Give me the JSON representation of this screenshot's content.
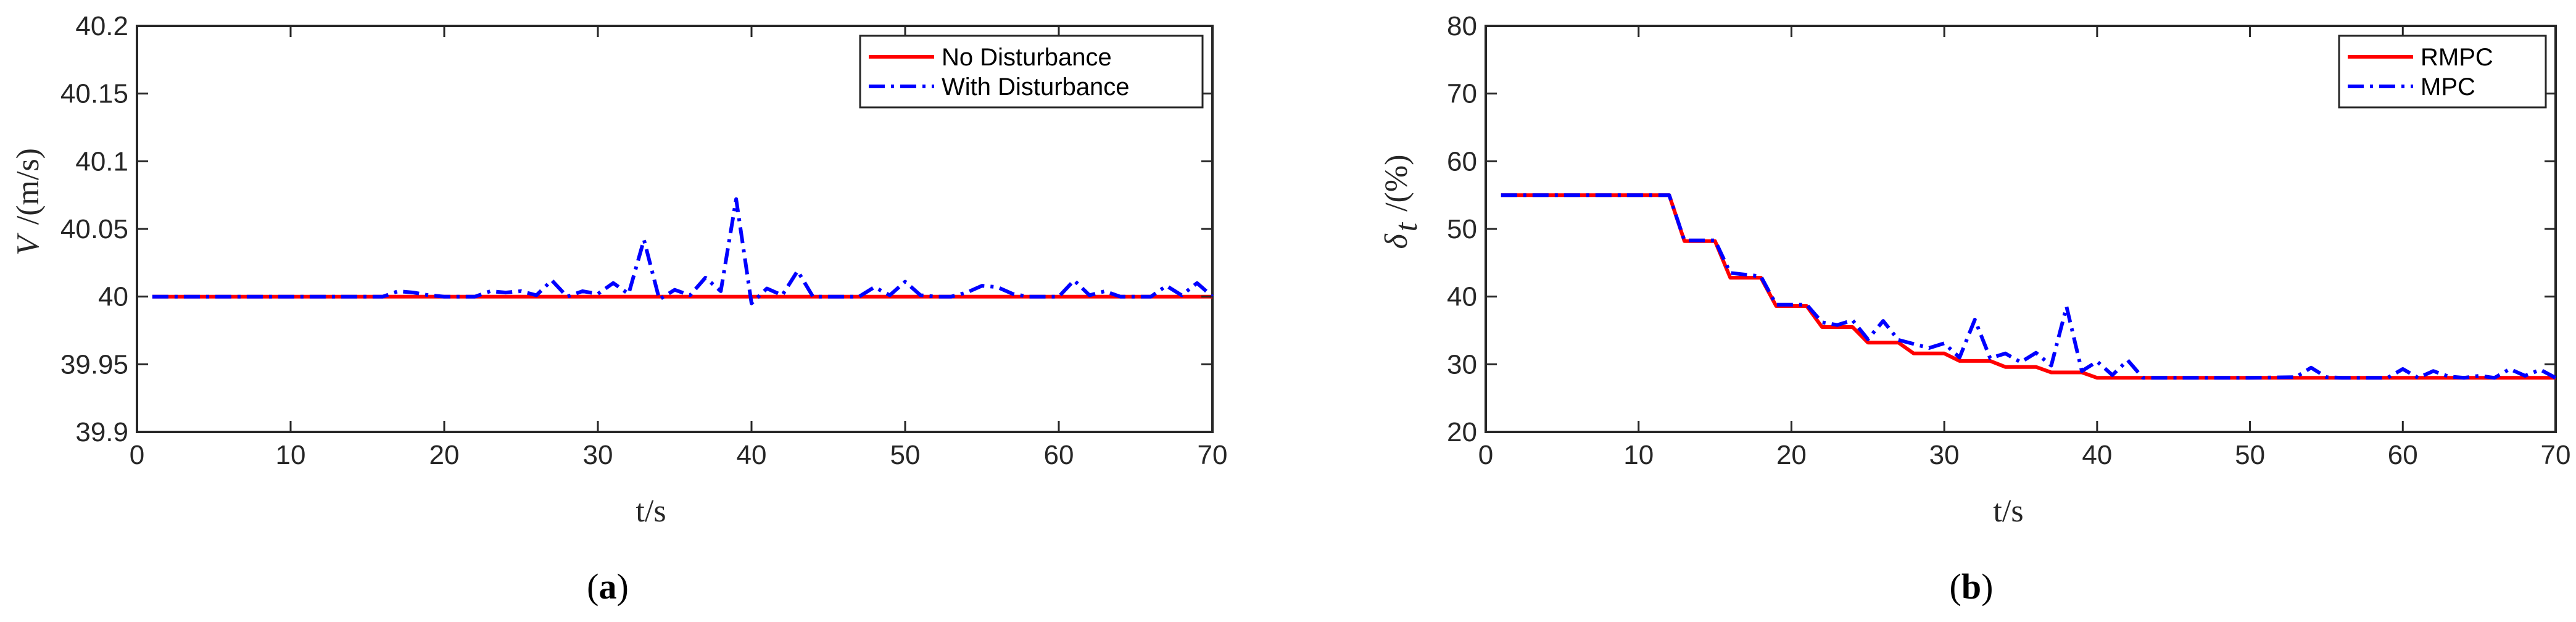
{
  "chart_data": [
    {
      "type": "line",
      "caption": {
        "open": "(",
        "letter": "a",
        "close": ")"
      },
      "xlabel": "t/s",
      "ylabel": {
        "symbol": "V",
        "unit": "/(m/s)"
      },
      "xlim": [
        0,
        70
      ],
      "ylim": [
        39.9,
        40.2
      ],
      "xticks": [
        0,
        10,
        20,
        30,
        40,
        50,
        60,
        70
      ],
      "yticks": [
        39.9,
        39.95,
        40,
        40.05,
        40.1,
        40.15,
        40.2
      ],
      "ytick_labels": [
        "39.9",
        "39.95",
        "40",
        "40.05",
        "40.1",
        "40.15",
        "40.2"
      ],
      "grid": false,
      "legend_position": "top-right",
      "series": [
        {
          "name": "No Disturbance",
          "color": "#ff0000",
          "style": "solid",
          "x": [
            1,
            70
          ],
          "y": [
            40.0,
            40.0
          ]
        },
        {
          "name": "With Disturbance",
          "color": "#0000ff",
          "style": "dashdot",
          "x": [
            1,
            2,
            3,
            4,
            5,
            6,
            7,
            8,
            9,
            10,
            11,
            12,
            13,
            14,
            15,
            16,
            17,
            18,
            19,
            20,
            21,
            22,
            23,
            24,
            25,
            26,
            27,
            28,
            29,
            30,
            31,
            32,
            33,
            34,
            35,
            36,
            37,
            38,
            39,
            40,
            41,
            42,
            43,
            44,
            45,
            46,
            47,
            48,
            49,
            50,
            51,
            52,
            53,
            54,
            55,
            56,
            57,
            58,
            59,
            60,
            61,
            62,
            63,
            64,
            65,
            66,
            67,
            68,
            69,
            70
          ],
          "y": [
            40,
            40,
            40,
            40,
            40,
            40,
            40,
            40,
            40,
            40,
            40,
            40,
            40,
            40,
            40,
            40,
            40.004,
            40.003,
            40.001,
            40,
            40,
            40,
            40.004,
            40.003,
            40.004,
            40.001,
            40.012,
            40,
            40.004,
            40.002,
            40.01,
            40.002,
            40.042,
            39.998,
            40.005,
            40.001,
            40.014,
            40.004,
            40.072,
            39.995,
            40.006,
            40.001,
            40.019,
            40,
            40,
            40,
            40,
            40.007,
            40.001,
            40.011,
            40.001,
            40,
            40,
            40.003,
            40.008,
            40.007,
            40.002,
            40,
            40,
            40,
            40.012,
            40.001,
            40.004,
            40,
            40,
            40,
            40.008,
            40.001,
            40.01,
            40
          ]
        }
      ]
    },
    {
      "type": "line",
      "caption": {
        "open": "(",
        "letter": "b",
        "close": ")"
      },
      "xlabel": "t/s",
      "ylabel": {
        "symbol": "δ",
        "subscript": "t",
        "unit": "/(%)"
      },
      "xlim": [
        0,
        70
      ],
      "ylim": [
        20,
        80
      ],
      "xticks": [
        0,
        10,
        20,
        30,
        40,
        50,
        60,
        70
      ],
      "yticks": [
        20,
        30,
        40,
        50,
        60,
        70,
        80
      ],
      "ytick_labels": [
        "20",
        "30",
        "40",
        "50",
        "60",
        "70",
        "80"
      ],
      "grid": false,
      "legend_position": "top-right",
      "series": [
        {
          "name": "RMPC",
          "color": "#ff0000",
          "style": "solid",
          "x": [
            1,
            12,
            13,
            15,
            16,
            18,
            19,
            21,
            22,
            24,
            25,
            27,
            28,
            30,
            31,
            33,
            34,
            36,
            37,
            39,
            40,
            70
          ],
          "y": [
            55,
            55,
            48.2,
            48.2,
            42.8,
            42.8,
            38.6,
            38.6,
            35.5,
            35.5,
            33.2,
            33.2,
            31.6,
            31.6,
            30.5,
            30.5,
            29.6,
            29.6,
            28.8,
            28.8,
            28,
            28
          ]
        },
        {
          "name": "MPC",
          "color": "#0000ff",
          "style": "dashdot",
          "x": [
            1,
            12,
            13,
            15,
            16,
            18,
            19,
            21,
            22,
            23,
            24,
            25,
            26,
            27,
            28,
            29,
            30,
            31,
            32,
            33,
            34,
            35,
            36,
            37,
            38,
            39,
            40,
            41,
            42,
            43,
            44,
            45,
            50,
            53,
            54,
            55,
            56,
            59,
            60,
            61,
            62,
            63,
            64,
            65,
            66,
            67,
            68,
            69,
            70
          ],
          "y": [
            55,
            55,
            48.3,
            48.3,
            43.5,
            43,
            38.8,
            38.8,
            36.2,
            35.8,
            36.5,
            33.7,
            36.4,
            33.6,
            33,
            32.4,
            33.1,
            31,
            36.6,
            30.9,
            31.6,
            30.3,
            31.7,
            29.8,
            38.5,
            29,
            30.4,
            28.4,
            30.6,
            28,
            28,
            28,
            28,
            28.1,
            29.5,
            28.1,
            28,
            28,
            29.3,
            28,
            29,
            28.2,
            28,
            28.3,
            28,
            29.3,
            28.3,
            29.2,
            28
          ]
        }
      ]
    }
  ]
}
